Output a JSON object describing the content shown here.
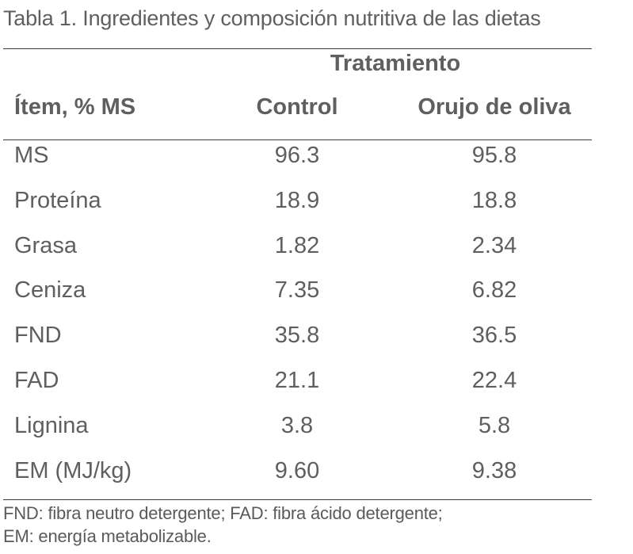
{
  "caption": "Tabla 1. Ingredientes y composición nutritiva de las dietas",
  "table": {
    "group_header": "Tratamiento",
    "item_header": "Ítem, % MS",
    "columns": [
      "Control",
      "Orujo de oliva"
    ],
    "rows": [
      {
        "label": "MS",
        "values": [
          "96.3",
          "95.8"
        ]
      },
      {
        "label": "Proteína",
        "values": [
          "18.9",
          "18.8"
        ]
      },
      {
        "label": "Grasa",
        "values": [
          "1.82",
          "2.34"
        ]
      },
      {
        "label": "Ceniza",
        "values": [
          "7.35",
          "6.82"
        ]
      },
      {
        "label": "FND",
        "values": [
          "35.8",
          "36.5"
        ]
      },
      {
        "label": "FAD",
        "values": [
          "21.1",
          "22.4"
        ]
      },
      {
        "label": "Lignina",
        "values": [
          "3.8",
          "5.8"
        ]
      },
      {
        "label": "EM (MJ/kg)",
        "values": [
          "9.60",
          "9.38"
        ]
      }
    ]
  },
  "footnote": {
    "line1": "FND: fibra neutro detergente; FAD: fibra ácido detergente;",
    "line2": "EM: energía metabolizable."
  }
}
